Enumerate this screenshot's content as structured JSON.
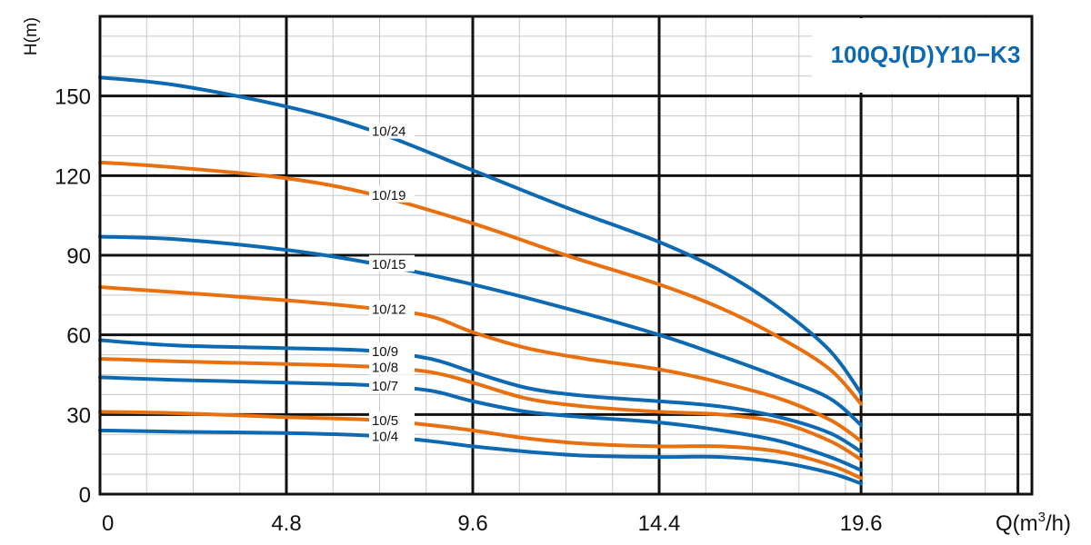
{
  "chart_data": {
    "type": "line",
    "title": "100QJ(D)Y10−K3",
    "xlabel": "Q(m",
    "xlabel_sup": "3",
    "xlabel_tail": "/h)",
    "ylabel": "H(m)",
    "xlim": [
      0,
      24
    ],
    "ylim": [
      0,
      180
    ],
    "x_ticks": [
      0,
      4.8,
      9.6,
      14.4,
      19.6
    ],
    "x_tick_labels": [
      "0",
      "4.8",
      "9.6",
      "14.4",
      "19.6"
    ],
    "y_ticks": [
      0,
      30,
      60,
      90,
      120,
      150
    ],
    "y_tick_labels": [
      "0",
      "30",
      "60",
      "90",
      "120",
      "150"
    ],
    "grid": true,
    "colors": {
      "blue": "#0e69b3",
      "orange": "#e8700f",
      "grid_major": "#111111",
      "grid_minor": "#c8c8c8"
    },
    "series": [
      {
        "name": "10/24",
        "color": "blue",
        "label_x": 7.0,
        "points": [
          [
            0,
            157
          ],
          [
            2,
            154
          ],
          [
            4.8,
            146
          ],
          [
            7,
            137
          ],
          [
            9.6,
            122
          ],
          [
            12,
            108
          ],
          [
            14.4,
            95
          ],
          [
            16,
            84
          ],
          [
            17.5,
            70
          ],
          [
            18.8,
            54
          ],
          [
            19.6,
            38
          ]
        ]
      },
      {
        "name": "10/19",
        "color": "orange",
        "label_x": 7.0,
        "points": [
          [
            0,
            125
          ],
          [
            2,
            123
          ],
          [
            4.8,
            119
          ],
          [
            7,
            113
          ],
          [
            9.6,
            102
          ],
          [
            12,
            90
          ],
          [
            14.4,
            79
          ],
          [
            16,
            70
          ],
          [
            17.5,
            59
          ],
          [
            18.8,
            47
          ],
          [
            19.6,
            34
          ]
        ]
      },
      {
        "name": "10/15",
        "color": "blue",
        "label_x": 7.0,
        "points": [
          [
            0,
            97
          ],
          [
            2,
            96
          ],
          [
            4.8,
            92
          ],
          [
            7,
            87
          ],
          [
            9.6,
            79
          ],
          [
            12,
            70
          ],
          [
            14.4,
            60
          ],
          [
            16,
            52
          ],
          [
            17.5,
            44
          ],
          [
            18.8,
            36
          ],
          [
            19.6,
            26
          ]
        ]
      },
      {
        "name": "10/12",
        "color": "orange",
        "label_x": 7.0,
        "points": [
          [
            0,
            78
          ],
          [
            2,
            76
          ],
          [
            4.8,
            73
          ],
          [
            7,
            70
          ],
          [
            8.5,
            67
          ],
          [
            9.6,
            61
          ],
          [
            11,
            55
          ],
          [
            12.5,
            51
          ],
          [
            14.4,
            47
          ],
          [
            16,
            42
          ],
          [
            17.5,
            36
          ],
          [
            18.8,
            28
          ],
          [
            19.6,
            20
          ]
        ]
      },
      {
        "name": "10/9",
        "color": "blue",
        "label_x": 7.0,
        "points": [
          [
            0,
            58
          ],
          [
            2,
            56
          ],
          [
            4.8,
            55
          ],
          [
            7,
            54
          ],
          [
            8.5,
            51
          ],
          [
            9.6,
            46
          ],
          [
            11,
            40
          ],
          [
            12.5,
            37
          ],
          [
            14.4,
            35
          ],
          [
            16,
            33
          ],
          [
            17.5,
            29
          ],
          [
            18.8,
            23
          ],
          [
            19.6,
            16
          ]
        ]
      },
      {
        "name": "10/8",
        "color": "orange",
        "label_x": 7.0,
        "points": [
          [
            0,
            51
          ],
          [
            2,
            50
          ],
          [
            4.8,
            49
          ],
          [
            7,
            48
          ],
          [
            8.5,
            46
          ],
          [
            9.6,
            42
          ],
          [
            11,
            36
          ],
          [
            12.5,
            33
          ],
          [
            14.4,
            31
          ],
          [
            16,
            30
          ],
          [
            17.5,
            27
          ],
          [
            18.8,
            20
          ],
          [
            19.6,
            13
          ]
        ]
      },
      {
        "name": "10/7",
        "color": "blue",
        "label_x": 7.0,
        "points": [
          [
            0,
            44
          ],
          [
            2,
            43
          ],
          [
            4.8,
            42
          ],
          [
            7,
            41
          ],
          [
            8.5,
            39
          ],
          [
            9.6,
            35
          ],
          [
            11,
            31
          ],
          [
            12.5,
            29
          ],
          [
            14.4,
            27
          ],
          [
            16,
            24
          ],
          [
            17.5,
            20
          ],
          [
            18.8,
            14
          ],
          [
            19.6,
            9
          ]
        ]
      },
      {
        "name": "10/5",
        "color": "orange",
        "label_x": 7.0,
        "points": [
          [
            0,
            31
          ],
          [
            2,
            30.5
          ],
          [
            4.8,
            29
          ],
          [
            7,
            28
          ],
          [
            8.5,
            26
          ],
          [
            9.6,
            24
          ],
          [
            11,
            21
          ],
          [
            12.5,
            19
          ],
          [
            14.4,
            18
          ],
          [
            16,
            18
          ],
          [
            17.5,
            16
          ],
          [
            18.8,
            11
          ],
          [
            19.6,
            6
          ]
        ]
      },
      {
        "name": "10/4",
        "color": "blue",
        "label_x": 7.0,
        "points": [
          [
            0,
            24
          ],
          [
            2,
            23.5
          ],
          [
            4.8,
            23
          ],
          [
            7,
            22
          ],
          [
            8.5,
            20
          ],
          [
            9.6,
            18
          ],
          [
            11,
            16
          ],
          [
            12.5,
            14.5
          ],
          [
            14.4,
            14
          ],
          [
            16,
            14
          ],
          [
            17.5,
            12
          ],
          [
            18.8,
            8
          ],
          [
            19.6,
            4
          ]
        ]
      }
    ]
  }
}
